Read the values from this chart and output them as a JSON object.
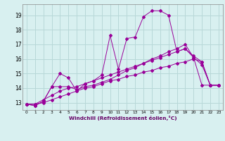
{
  "x": [
    0,
    1,
    2,
    3,
    4,
    5,
    6,
    7,
    8,
    9,
    10,
    11,
    12,
    13,
    14,
    15,
    16,
    17,
    18,
    19,
    20,
    21,
    22,
    23
  ],
  "line1": [
    12.9,
    12.8,
    13.1,
    14.1,
    15.0,
    14.7,
    13.8,
    14.3,
    14.5,
    14.9,
    17.6,
    15.3,
    17.4,
    17.5,
    18.9,
    19.3,
    19.3,
    19.0,
    16.5,
    16.7,
    16.1,
    15.6,
    14.2,
    14.2
  ],
  "line2": [
    12.9,
    12.8,
    13.1,
    14.1,
    14.1,
    14.1,
    13.9,
    14.1,
    14.2,
    14.4,
    14.6,
    14.9,
    15.2,
    15.4,
    15.7,
    16.0,
    16.2,
    16.5,
    16.7,
    17.0,
    16.1,
    14.2,
    14.2,
    14.2
  ],
  "line3": [
    12.9,
    12.9,
    13.2,
    13.5,
    13.8,
    14.0,
    14.1,
    14.3,
    14.5,
    14.7,
    14.9,
    15.1,
    15.3,
    15.5,
    15.7,
    15.9,
    16.1,
    16.3,
    16.5,
    16.7,
    16.2,
    15.8,
    14.2,
    14.2
  ],
  "line4": [
    12.9,
    12.9,
    13.0,
    13.2,
    13.4,
    13.6,
    13.8,
    14.0,
    14.1,
    14.3,
    14.5,
    14.6,
    14.8,
    14.9,
    15.1,
    15.2,
    15.4,
    15.5,
    15.7,
    15.8,
    16.0,
    15.8,
    14.2,
    14.2
  ],
  "line_color": "#990099",
  "bg_color": "#d8f0f0",
  "grid_color": "#b8d8d8",
  "xlabel": "Windchill (Refroidissement éolien,°C)",
  "ylim": [
    12.5,
    19.75
  ],
  "xlim": [
    -0.5,
    23.5
  ],
  "yticks": [
    13,
    14,
    15,
    16,
    17,
    18,
    19
  ],
  "xticks": [
    0,
    1,
    2,
    3,
    4,
    5,
    6,
    7,
    8,
    9,
    10,
    11,
    12,
    13,
    14,
    15,
    16,
    17,
    18,
    19,
    20,
    21,
    22,
    23
  ],
  "xtick_labels": [
    "0",
    "1",
    "2",
    "3",
    "4",
    "5",
    "6",
    "7",
    "8",
    "9",
    "10",
    "11",
    "12",
    "13",
    "14",
    "15",
    "16",
    "17",
    "18",
    "19",
    "20",
    "21",
    "22",
    "23"
  ]
}
